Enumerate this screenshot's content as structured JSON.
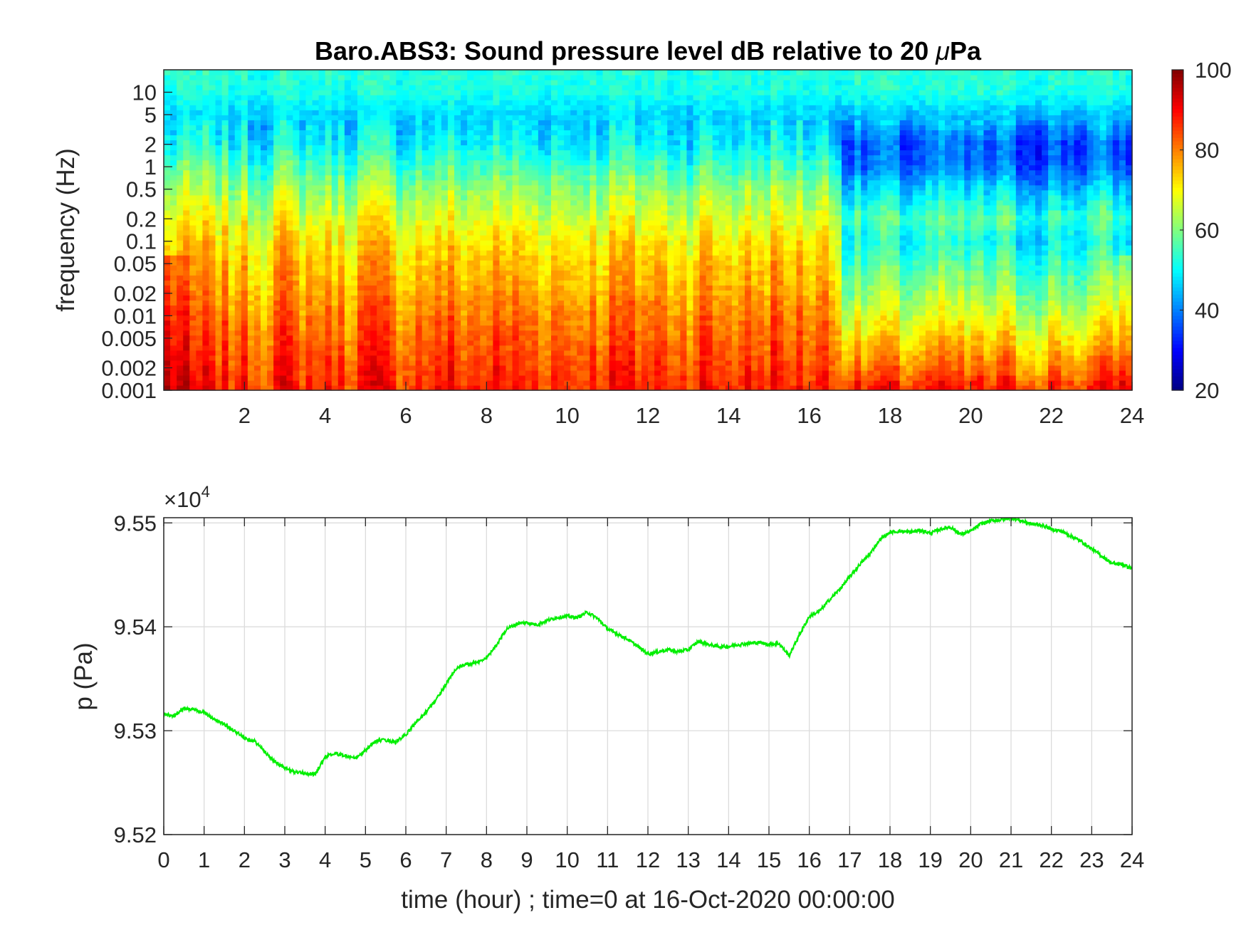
{
  "chart_data": [
    {
      "type": "heatmap",
      "title": "Baro.ABS3: Sound pressure level dB relative to 20 μPa",
      "title_parts": [
        "Baro.ABS3: Sound pressure level dB relative to 20 ",
        "μ",
        "Pa"
      ],
      "ylabel": "frequency (Hz)",
      "xlabel": "",
      "xlim": [
        0,
        24
      ],
      "ylim": [
        0.001,
        20
      ],
      "yscale": "log",
      "x_ticks": [
        2,
        4,
        6,
        8,
        10,
        12,
        14,
        16,
        18,
        20,
        22,
        24
      ],
      "x_tick_labels": [
        "2",
        "4",
        "6",
        "8",
        "10",
        "12",
        "14",
        "16",
        "18",
        "20",
        "22",
        "24"
      ],
      "y_ticks": [
        0.001,
        0.002,
        0.005,
        0.01,
        0.02,
        0.05,
        0.1,
        0.2,
        0.5,
        1,
        2,
        5,
        10
      ],
      "y_tick_labels": [
        "0.001",
        "0.002",
        "0.005",
        "0.01",
        "0.02",
        "0.05",
        "0.1",
        "0.2",
        "0.5",
        "1",
        "2",
        "5",
        "10"
      ],
      "colormap": "jet",
      "clim": [
        20,
        100
      ],
      "colorbar_ticks": [
        20,
        40,
        60,
        80,
        100
      ],
      "colorbar_tick_labels": [
        "20",
        "40",
        "60",
        "80",
        "100"
      ],
      "colorbar_location": "right",
      "dB_profile": {
        "freq_hz": [
          0.001,
          0.002,
          0.005,
          0.01,
          0.02,
          0.05,
          0.1,
          0.2,
          0.5,
          1,
          2,
          5,
          10,
          20
        ],
        "day_period_0_to_17h": [
          88,
          86,
          83,
          81,
          78,
          75,
          72,
          68,
          62,
          56,
          50,
          47,
          52,
          53
        ],
        "quiet_period_17_to_24h": [
          87,
          80,
          72,
          66,
          61,
          55,
          50,
          55,
          46,
          38,
          36,
          45,
          52,
          53
        ]
      },
      "transition_hour": 16.8
    },
    {
      "type": "line",
      "title": "",
      "xlabel": "time (hour) ; time=0 at 16-Oct-2020 00:00:00",
      "ylabel": "p (Pa)",
      "xlim": [
        0,
        24
      ],
      "ylim": [
        95200,
        95505
      ],
      "exponent_label": "×10",
      "exponent_power": "4",
      "grid": true,
      "x_ticks": [
        0,
        1,
        2,
        3,
        4,
        5,
        6,
        7,
        8,
        9,
        10,
        11,
        12,
        13,
        14,
        15,
        16,
        17,
        18,
        19,
        20,
        21,
        22,
        23,
        24
      ],
      "x_tick_labels": [
        "0",
        "1",
        "2",
        "3",
        "4",
        "5",
        "6",
        "7",
        "8",
        "9",
        "10",
        "11",
        "12",
        "13",
        "14",
        "15",
        "16",
        "17",
        "18",
        "19",
        "20",
        "21",
        "22",
        "23",
        "24"
      ],
      "y_ticks": [
        95200,
        95300,
        95400,
        95500
      ],
      "y_tick_labels": [
        "9.52",
        "9.53",
        "9.54",
        "9.55"
      ],
      "series": [
        {
          "color": "#00ee00",
          "x": [
            0,
            0.25,
            0.5,
            0.75,
            1,
            1.25,
            1.5,
            1.75,
            2,
            2.25,
            2.5,
            2.75,
            3,
            3.25,
            3.5,
            3.75,
            4,
            4.25,
            4.5,
            4.75,
            5,
            5.25,
            5.5,
            5.75,
            6,
            6.25,
            6.5,
            6.75,
            7,
            7.25,
            7.5,
            7.75,
            8,
            8.25,
            8.5,
            8.75,
            9,
            9.25,
            9.5,
            9.75,
            10,
            10.25,
            10.5,
            10.75,
            11,
            11.25,
            11.5,
            11.75,
            12,
            12.25,
            12.5,
            12.75,
            13,
            13.25,
            13.5,
            13.75,
            14,
            14.25,
            14.5,
            14.75,
            15,
            15.25,
            15.5,
            15.75,
            16,
            16.25,
            16.5,
            16.75,
            17,
            17.25,
            17.5,
            17.75,
            18,
            18.25,
            18.5,
            18.75,
            19,
            19.25,
            19.5,
            19.75,
            20,
            20.25,
            20.5,
            20.75,
            21,
            21.25,
            21.5,
            21.75,
            22,
            22.25,
            22.5,
            22.75,
            23,
            23.25,
            23.5,
            23.75,
            24
          ],
          "y": [
            95316,
            95314,
            95322,
            95320,
            95318,
            95311,
            95306,
            95300,
            95293,
            95290,
            95280,
            95270,
            95264,
            95260,
            95259,
            95258,
            95275,
            95278,
            95276,
            95273,
            95281,
            95290,
            95291,
            95289,
            95296,
            95308,
            95318,
            95330,
            95345,
            95360,
            95364,
            95365,
            95370,
            95383,
            95398,
            95403,
            95404,
            95402,
            95406,
            95409,
            95410,
            95409,
            95414,
            95408,
            95398,
            95393,
            95388,
            95381,
            95374,
            95376,
            95378,
            95376,
            95378,
            95386,
            95383,
            95381,
            95381,
            95383,
            95384,
            95385,
            95383,
            95384,
            95372,
            95392,
            95410,
            95415,
            95426,
            95436,
            95448,
            95460,
            95470,
            95484,
            95491,
            95492,
            95491,
            95493,
            95490,
            95494,
            95496,
            95489,
            95492,
            95499,
            95502,
            95503,
            95505,
            95502,
            95499,
            95498,
            95494,
            95492,
            95487,
            95482,
            95475,
            95468,
            95461,
            95460,
            95456
          ]
        }
      ]
    }
  ]
}
